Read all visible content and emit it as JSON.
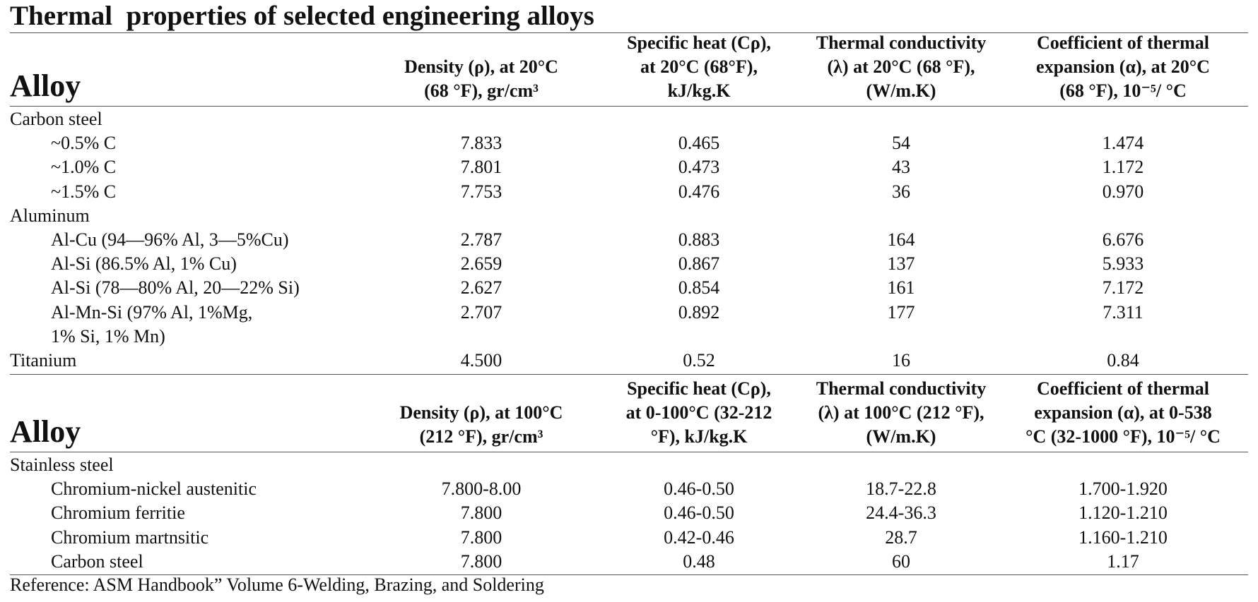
{
  "title": "Thermal  properties of selected engineering alloys",
  "table1": {
    "alloy_header": "Alloy",
    "col_headers": [
      [
        "Density (ρ), at 20°C",
        "(68 °F), gr/cm³"
      ],
      [
        "Specific heat (Cρ),",
        "at 20°C (68°F),",
        "kJ/kg.K"
      ],
      [
        "Thermal conductivity",
        "(λ) at 20°C (68 °F),",
        "(W/m.K)"
      ],
      [
        "Coefficient of thermal",
        "expansion (α), at 20°C",
        "(68 °F), 10⁻⁵/ °C"
      ]
    ],
    "rows": [
      {
        "name": "Carbon steel",
        "indent": false,
        "values": [
          "",
          "",
          "",
          ""
        ]
      },
      {
        "name": "~0.5% C",
        "indent": true,
        "values": [
          "7.833",
          "0.465",
          "54",
          "1.474"
        ]
      },
      {
        "name": "~1.0% C",
        "indent": true,
        "values": [
          "7.801",
          "0.473",
          "43",
          "1.172"
        ]
      },
      {
        "name": "~1.5% C",
        "indent": true,
        "values": [
          "7.753",
          "0.476",
          "36",
          "0.970"
        ]
      },
      {
        "name": "Aluminum",
        "indent": false,
        "values": [
          "",
          "",
          "",
          ""
        ]
      },
      {
        "name": "Al-Cu (94—96% Al, 3—5%Cu)",
        "indent": true,
        "values": [
          "2.787",
          "0.883",
          "164",
          "6.676"
        ]
      },
      {
        "name": "Al-Si (86.5% Al, 1% Cu)",
        "indent": true,
        "values": [
          "2.659",
          "0.867",
          "137",
          "5.933"
        ]
      },
      {
        "name": "Al-Si (78—80% Al, 20—22% Si)",
        "indent": true,
        "values": [
          "2.627",
          "0.854",
          "161",
          "7.172"
        ]
      },
      {
        "name": "Al-Mn-Si (97% Al, 1%Mg,",
        "indent": true,
        "values": [
          "2.707",
          "0.892",
          "177",
          "7.311"
        ]
      },
      {
        "name": "1% Si, 1% Mn)",
        "indent": true,
        "values": [
          "",
          "",
          "",
          ""
        ]
      },
      {
        "name": "Titanium",
        "indent": false,
        "values": [
          "4.500",
          "0.52",
          "16",
          "0.84"
        ]
      }
    ]
  },
  "table2": {
    "alloy_header": "Alloy",
    "col_headers": [
      [
        "Density (ρ), at 100°C",
        "(212 °F), gr/cm³"
      ],
      [
        "Specific heat (Cρ),",
        "at 0-100°C (32-212",
        "°F), kJ/kg.K"
      ],
      [
        "Thermal conductivity",
        "(λ) at 100°C (212 °F),",
        "(W/m.K)"
      ],
      [
        "Coefficient of thermal",
        "expansion (α), at 0-538",
        "°C (32-1000 °F), 10⁻⁵/ °C"
      ]
    ],
    "rows": [
      {
        "name": "Stainless steel",
        "indent": false,
        "values": [
          "",
          "",
          "",
          ""
        ]
      },
      {
        "name": "Chromium-nickel austenitic",
        "indent": true,
        "values": [
          "7.800-8.00",
          "0.46-0.50",
          "18.7-22.8",
          "1.700-1.920"
        ]
      },
      {
        "name": "Chromium ferritie",
        "indent": true,
        "values": [
          "7.800",
          "0.46-0.50",
          "24.4-36.3",
          "1.120-1.210"
        ]
      },
      {
        "name": "Chromium martnsitic",
        "indent": true,
        "values": [
          "7.800",
          "0.42-0.46",
          "28.7",
          "1.160-1.210"
        ]
      },
      {
        "name": "Carbon steel",
        "indent": true,
        "values": [
          "7.800",
          "0.48",
          "60",
          "1.17"
        ]
      }
    ]
  },
  "reference": "Reference: ASM Handbook” Volume 6-Welding, Brazing, and Soldering"
}
